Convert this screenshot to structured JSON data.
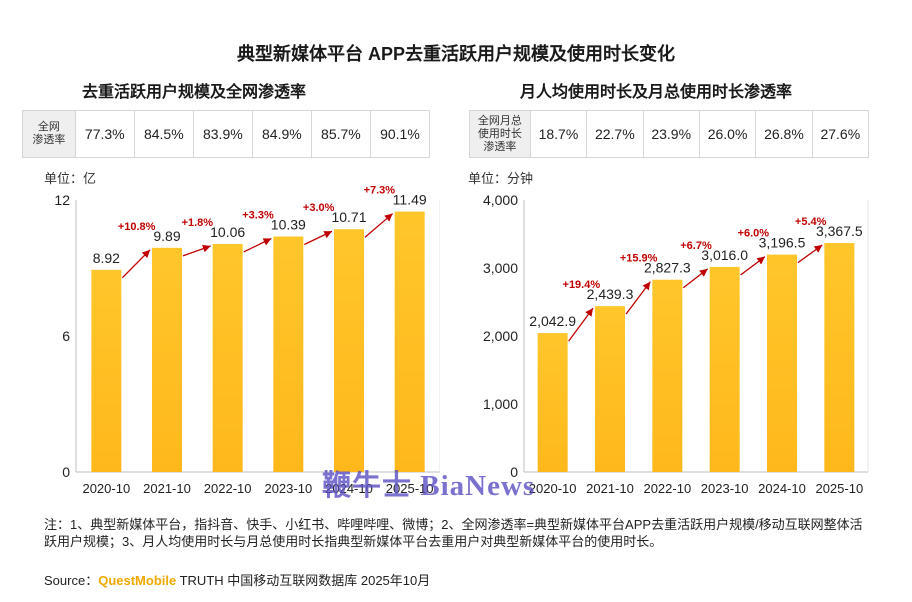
{
  "title": "典型新媒体平台 APP去重活跃用户规模及使用时长变化",
  "watermark": "鞭牛士 BiaNews",
  "panels": {
    "left": {
      "subtitle": "去重活跃用户规模及全网渗透率",
      "penetration_header": "全网\n渗透率",
      "penetration": [
        "77.3%",
        "84.5%",
        "83.9%",
        "84.9%",
        "85.7%",
        "90.1%"
      ],
      "unit": "单位：亿"
    },
    "right": {
      "subtitle": "月人均使用时长及月总使用时长渗透率",
      "penetration_header": "全网月总\n使用时长\n渗透率",
      "penetration": [
        "18.7%",
        "22.7%",
        "23.9%",
        "26.0%",
        "26.8%",
        "27.6%"
      ],
      "unit": "单位：分钟"
    }
  },
  "chart_data": [
    {
      "type": "bar",
      "categories": [
        "2020-10",
        "2021-10",
        "2022-10",
        "2023-10",
        "2024-10",
        "2025-10"
      ],
      "values": [
        8.92,
        9.89,
        10.06,
        10.39,
        10.71,
        11.49
      ],
      "value_labels": [
        "8.92",
        "9.89",
        "10.06",
        "10.39",
        "10.71",
        "11.49"
      ],
      "growth_labels": [
        "+10.8%",
        "+1.8%",
        "+3.3%",
        "+3.0%",
        "+7.3%"
      ],
      "ylim": [
        0,
        12
      ],
      "yticks": [
        0,
        6,
        12
      ],
      "ytick_labels": [
        "0",
        "6",
        "12"
      ],
      "grid": false,
      "bar_color": "#FFB81C",
      "growth_color": "#C00000"
    },
    {
      "type": "bar",
      "categories": [
        "2020-10",
        "2021-10",
        "2022-10",
        "2023-10",
        "2024-10",
        "2025-10"
      ],
      "values": [
        2042.9,
        2439.3,
        2827.3,
        3016.0,
        3196.5,
        3367.5
      ],
      "value_labels": [
        "2,042.9",
        "2,439.3",
        "2,827.3",
        "3,016.0",
        "3,196.5",
        "3,367.5"
      ],
      "growth_labels": [
        "+19.4%",
        "+15.9%",
        "+6.7%",
        "+6.0%",
        "+5.4%"
      ],
      "ylim": [
        0,
        4000
      ],
      "yticks": [
        0,
        1000,
        2000,
        3000,
        4000
      ],
      "ytick_labels": [
        "0",
        "1,000",
        "2,000",
        "3,000",
        "4,000"
      ],
      "grid": false,
      "bar_color": "#FFB81C",
      "growth_color": "#C00000"
    }
  ],
  "notes": "注：1、典型新媒体平台，指抖音、快手、小红书、哔哩哔哩、微博；2、全网渗透率=典型新媒体平台APP去重活跃用户规模/移动互联网整体活跃用户规模；3、月人均使用时长与月总使用时长指典型新媒体平台去重用户对典型新媒体平台的使用时长。",
  "source": {
    "prefix": "Source：",
    "brand": "QuestMobile",
    "rest": " TRUTH 中国移动互联网数据库 2025年10月"
  }
}
